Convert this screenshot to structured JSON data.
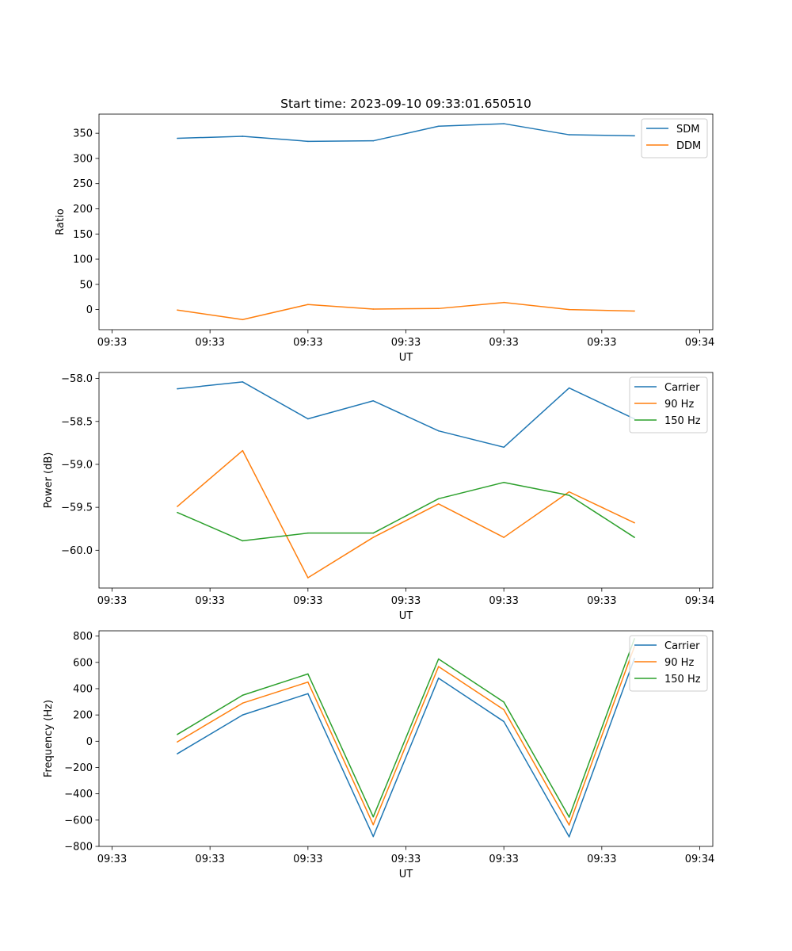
{
  "figure_title": "Start time: 2023-09-10 09:33:01.650510",
  "colors": {
    "blue": "#1f77b4",
    "orange": "#ff7f0e",
    "green": "#2ca02c"
  },
  "chart_data": [
    {
      "type": "line",
      "title": "Start time: 2023-09-10 09:33:01.650510",
      "xlabel": "UT",
      "ylabel": "Ratio",
      "x": [
        1,
        2,
        3,
        4,
        5,
        6,
        7,
        8
      ],
      "xlim": [
        -0.2,
        9.2
      ],
      "x_ticks": [
        0,
        1.5,
        3,
        4.5,
        6,
        7.5,
        9
      ],
      "x_tick_labels": [
        "09:33",
        "09:33",
        "09:33",
        "09:33",
        "09:33",
        "09:33",
        "09:34"
      ],
      "ylim": [
        -40,
        388
      ],
      "y_ticks": [
        0,
        50,
        100,
        150,
        200,
        250,
        300,
        350
      ],
      "y_tick_labels": [
        "0",
        "50",
        "100",
        "150",
        "200",
        "250",
        "300",
        "350"
      ],
      "legend": "top-right",
      "series": [
        {
          "name": "SDM",
          "color": "#1f77b4",
          "values": [
            340,
            344,
            334,
            335,
            364,
            369,
            347,
            345
          ]
        },
        {
          "name": "DDM",
          "color": "#ff7f0e",
          "values": [
            -1,
            -20,
            10,
            1,
            2,
            14,
            0,
            -3
          ]
        }
      ]
    },
    {
      "type": "line",
      "title": "",
      "xlabel": "UT",
      "ylabel": "Power (dB)",
      "x": [
        1,
        2,
        3,
        4,
        5,
        6,
        7,
        8
      ],
      "xlim": [
        -0.2,
        9.2
      ],
      "x_ticks": [
        0,
        1.5,
        3,
        4.5,
        6,
        7.5,
        9
      ],
      "x_tick_labels": [
        "09:33",
        "09:33",
        "09:33",
        "09:33",
        "09:33",
        "09:33",
        "09:34"
      ],
      "ylim": [
        -60.44,
        -57.93
      ],
      "y_ticks": [
        -60.0,
        -59.5,
        -59.0,
        -58.5,
        -58.0
      ],
      "y_tick_labels": [
        "−60.0",
        "−59.5",
        "−59.0",
        "−58.5",
        "−58.0"
      ],
      "legend": "top-right",
      "series": [
        {
          "name": "Carrier",
          "color": "#1f77b4",
          "values": [
            -58.12,
            -58.04,
            -58.47,
            -58.26,
            -58.61,
            -58.8,
            -58.11,
            -58.47
          ]
        },
        {
          "name": "90 Hz",
          "color": "#ff7f0e",
          "values": [
            -59.49,
            -58.84,
            -60.32,
            -59.85,
            -59.46,
            -59.85,
            -59.32,
            -59.68
          ]
        },
        {
          "name": "150 Hz",
          "color": "#2ca02c",
          "values": [
            -59.56,
            -59.89,
            -59.8,
            -59.8,
            -59.4,
            -59.21,
            -59.36,
            -59.85
          ]
        }
      ]
    },
    {
      "type": "line",
      "title": "",
      "xlabel": "UT",
      "ylabel": "Frequency (Hz)",
      "x": [
        1,
        2,
        3,
        4,
        5,
        6,
        7,
        8
      ],
      "xlim": [
        -0.2,
        9.2
      ],
      "x_ticks": [
        0,
        1.5,
        3,
        4.5,
        6,
        7.5,
        9
      ],
      "x_tick_labels": [
        "09:33",
        "09:33",
        "09:33",
        "09:33",
        "09:33",
        "09:33",
        "09:34"
      ],
      "ylim": [
        -800,
        840
      ],
      "y_ticks": [
        -800,
        -600,
        -400,
        -200,
        0,
        200,
        400,
        600,
        800
      ],
      "y_tick_labels": [
        "−800",
        "−600",
        "−400",
        "−200",
        "0",
        "200",
        "400",
        "600",
        "800"
      ],
      "legend": "top-right",
      "series": [
        {
          "name": "Carrier",
          "color": "#1f77b4",
          "values": [
            -95,
            200,
            362,
            -725,
            480,
            150,
            -727,
            630
          ]
        },
        {
          "name": "90 Hz",
          "color": "#ff7f0e",
          "values": [
            -5,
            290,
            450,
            -635,
            568,
            240,
            -637,
            720
          ]
        },
        {
          "name": "150 Hz",
          "color": "#2ca02c",
          "values": [
            52,
            350,
            512,
            -575,
            626,
            298,
            -577,
            780
          ]
        }
      ]
    }
  ]
}
